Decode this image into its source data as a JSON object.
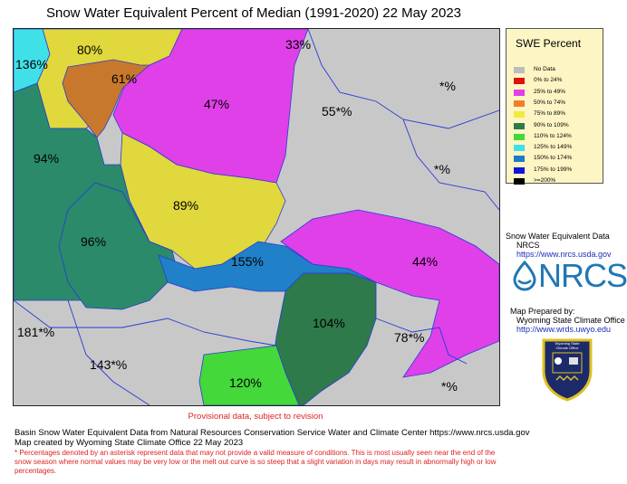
{
  "title": "Snow Water Equivalent Percent of Median (1991-2020) 22 May 2023",
  "legend": {
    "title": "SWE Percent",
    "items": [
      {
        "label": "No Data",
        "color": "#bdbdbd"
      },
      {
        "label": "0% to  24%",
        "color": "#e01010"
      },
      {
        "label": "25% to  49%",
        "color": "#e040e8"
      },
      {
        "label": "50% to  74%",
        "color": "#f08028"
      },
      {
        "label": "75% to  89%",
        "color": "#f2ea3c"
      },
      {
        "label": "90% to 109%",
        "color": "#2e7a4a"
      },
      {
        "label": "110% to 124%",
        "color": "#44d83a"
      },
      {
        "label": "125% to 149%",
        "color": "#40e0e8"
      },
      {
        "label": "150% to 174%",
        "color": "#1c7ac8"
      },
      {
        "label": "175% to 199%",
        "color": "#1414e0"
      },
      {
        "label": ">=200%",
        "color": "#000000"
      }
    ]
  },
  "basins": {
    "b136": "136%",
    "b80": "80%",
    "b61": "61%",
    "b33": "33%",
    "b47": "47%",
    "b55": "55*%",
    "bstar1": "*%",
    "bstar2": "*%",
    "b94": "94%",
    "b89": "89%",
    "b96": "96%",
    "b155": "155%",
    "b44": "44%",
    "b181": "181*%",
    "b104": "104%",
    "b78": "78*%",
    "b143": "143*%",
    "b120": "120%",
    "bstar3": "*%"
  },
  "credits": {
    "data_line1": "Snow Water Equivalent Data",
    "data_line2": "NRCS",
    "data_url": "https://www.nrcs.usda.gov",
    "logo_text": "NRCS",
    "prepared_by": "Map Prepared by:",
    "office": "Wyoming State Climate Office",
    "office_url": "http://www.wrds.uwyo.edu",
    "seal_text": "Wyoming State Climate Office"
  },
  "provisional": "Provisional data, subject to revision",
  "footer": {
    "line1": "Basin Snow Water Equivalent Data from Natural Resources Conservation Service Water and Climate Center https://www.nrcs.usda.gov",
    "line2": "Map created by Wyoming State Climate Office 22 May 2023",
    "note": "* Percentages denoted by an asterisk represent data that may not provide a valid measure of conditions.  This is most usually seen near the end of the snow season where normal values may be very low or the melt out curve is so steep that a slight variation in days may result in abnormally high or low percentages."
  },
  "colors": {
    "nodata": "#c8c8c8",
    "magenta": "#e040e8",
    "orange": "#c8782c",
    "yellow": "#e0d83c",
    "darkgreen": "#2e7a4a",
    "teal": "#2a8a6a",
    "green": "#44d83a",
    "cyan": "#40e0e8",
    "blue": "#2080c8",
    "river": "#2a3ad8"
  }
}
